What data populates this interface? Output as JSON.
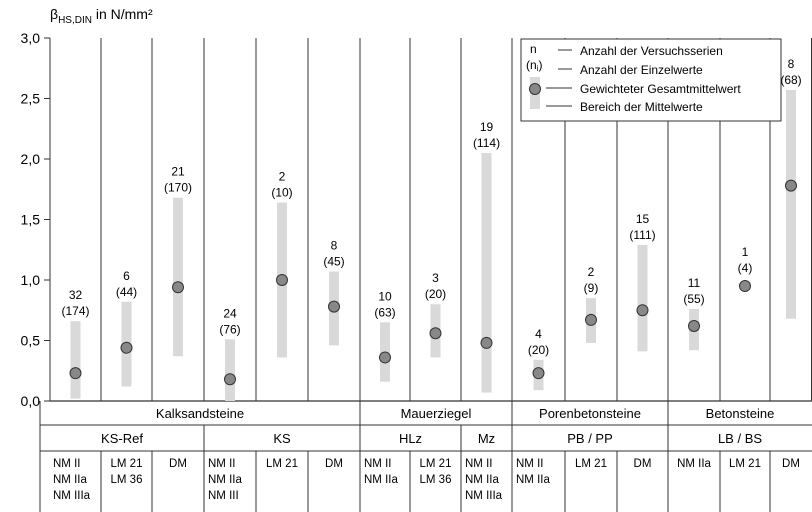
{
  "chart_data": {
    "type": "range-dot",
    "ylabel_main": "β",
    "ylabel_sub": "HS,DIN",
    "ylabel_unit": " in N/mm²",
    "ylim": [
      0,
      3.0
    ],
    "yticks": [
      "0,0",
      "0,5",
      "1,0",
      "1,5",
      "2,0",
      "2,5",
      "3,0"
    ],
    "legend": {
      "sym_n": "n",
      "sym_ni": "(n",
      "sym_ni_sub": "i",
      "sym_ni_close": ")",
      "items": [
        "Anzahl der Versuchsserien",
        "Anzahl der Einzelwerte",
        "Gewichteter Gesamtmittelwert",
        "Bereich der Mittelwerte"
      ],
      "fill_color": "#d9d9d9",
      "dot_color": "#888888"
    },
    "series": [
      {
        "series_n": "32",
        "values_n": "(174)",
        "min": 0.02,
        "max": 0.66,
        "mean": 0.23
      },
      {
        "series_n": "6",
        "values_n": "(44)",
        "min": 0.12,
        "max": 0.82,
        "mean": 0.44
      },
      {
        "series_n": "21",
        "values_n": "(170)",
        "min": 0.37,
        "max": 1.68,
        "mean": 0.94
      },
      {
        "series_n": "24",
        "values_n": "(76)",
        "min": 0.0,
        "max": 0.51,
        "mean": 0.18
      },
      {
        "series_n": "2",
        "values_n": "(10)",
        "min": 0.36,
        "max": 1.64,
        "mean": 1.0
      },
      {
        "series_n": "8",
        "values_n": "(45)",
        "min": 0.46,
        "max": 1.07,
        "mean": 0.78
      },
      {
        "series_n": "10",
        "values_n": "(63)",
        "min": 0.16,
        "max": 0.65,
        "mean": 0.36
      },
      {
        "series_n": "3",
        "values_n": "(20)",
        "min": 0.36,
        "max": 0.8,
        "mean": 0.56
      },
      {
        "series_n": "19",
        "values_n": "(114)",
        "min": 0.07,
        "max": 2.05,
        "mean": 0.48
      },
      {
        "series_n": "4",
        "values_n": "(20)",
        "min": 0.09,
        "max": 0.34,
        "mean": 0.23
      },
      {
        "series_n": "2",
        "values_n": "(9)",
        "min": 0.48,
        "max": 0.85,
        "mean": 0.67
      },
      {
        "series_n": "15",
        "values_n": "(111)",
        "min": 0.41,
        "max": 1.29,
        "mean": 0.75
      },
      {
        "series_n": "11",
        "values_n": "(55)",
        "min": 0.42,
        "max": 0.76,
        "mean": 0.62
      },
      {
        "series_n": "1",
        "values_n": "(4)",
        "min": null,
        "max": null,
        "mean": 0.95
      },
      {
        "series_n": "8",
        "values_n": "(68)",
        "min": 0.68,
        "max": 2.57,
        "mean": 1.78
      }
    ],
    "groups": [
      "Kalksandsteine",
      "Mauerziegel",
      "Porenbetonsteine",
      "Betonsteine"
    ],
    "subgroups": [
      "KS-Ref",
      "KS",
      "HLz",
      "Mz",
      "PB / PP",
      "LB / BS"
    ],
    "mortar_labels": [
      [
        "NM II",
        "NM IIa",
        "NM IIIa"
      ],
      [
        "LM 21",
        "LM 36"
      ],
      [
        "DM"
      ],
      [
        "NM II",
        "NM IIa",
        "NM III"
      ],
      [
        "LM 21"
      ],
      [
        "DM"
      ],
      [
        "NM II",
        "NM IIa"
      ],
      [
        "LM 21",
        "LM 36"
      ],
      [
        "NM II",
        "NM IIa",
        "NM IIIa"
      ],
      [
        "NM II",
        "NM IIa"
      ],
      [
        "LM 21"
      ],
      [
        "DM"
      ],
      [
        "NM IIa"
      ],
      [
        "LM 21"
      ],
      [
        "DM"
      ]
    ]
  }
}
